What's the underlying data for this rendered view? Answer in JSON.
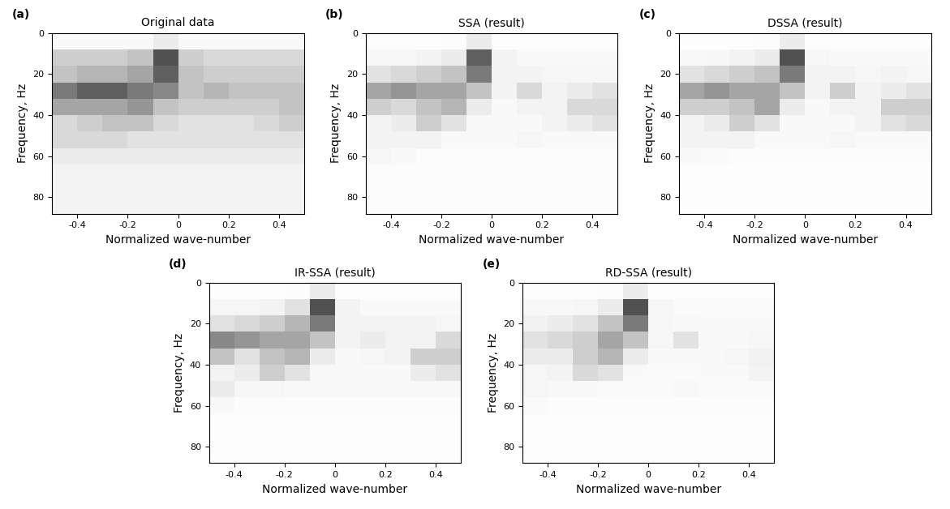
{
  "chart_data": [
    {
      "type": "heatmap",
      "panel": "(a)",
      "title": "Original data",
      "xlabel": "Normalized wave-number",
      "ylabel": "Frequency, Hz",
      "xlim": [
        -0.5,
        0.5
      ],
      "ylim": [
        88,
        0
      ],
      "xticks": [
        -0.4,
        -0.2,
        0,
        0.2,
        0.4
      ],
      "yticks": [
        0,
        20,
        40,
        60,
        80
      ],
      "color": "Greys",
      "value_range": [
        0,
        1
      ],
      "x_edges": [
        -0.5,
        -0.4,
        -0.3,
        -0.2,
        -0.1,
        0.0,
        0.1,
        0.2,
        0.3,
        0.4,
        0.5
      ],
      "y_edges": [
        0,
        8,
        16,
        24,
        32,
        40,
        48,
        56,
        64,
        72,
        80,
        88
      ],
      "cells": [
        [
          0.05,
          0.05,
          0.05,
          0.05,
          0.15,
          0.05,
          0.05,
          0.05,
          0.05,
          0.05
        ],
        [
          0.3,
          0.3,
          0.3,
          0.35,
          0.75,
          0.3,
          0.25,
          0.25,
          0.25,
          0.25
        ],
        [
          0.35,
          0.4,
          0.4,
          0.45,
          0.7,
          0.35,
          0.3,
          0.3,
          0.3,
          0.3
        ],
        [
          0.6,
          0.7,
          0.7,
          0.6,
          0.55,
          0.35,
          0.4,
          0.35,
          0.35,
          0.35
        ],
        [
          0.45,
          0.45,
          0.45,
          0.5,
          0.35,
          0.3,
          0.3,
          0.3,
          0.3,
          0.35
        ],
        [
          0.25,
          0.3,
          0.35,
          0.35,
          0.25,
          0.2,
          0.2,
          0.2,
          0.25,
          0.3
        ],
        [
          0.25,
          0.25,
          0.25,
          0.2,
          0.2,
          0.2,
          0.2,
          0.2,
          0.2,
          0.2
        ],
        [
          0.15,
          0.15,
          0.15,
          0.15,
          0.15,
          0.15,
          0.15,
          0.15,
          0.15,
          0.15
        ],
        [
          0.1,
          0.1,
          0.1,
          0.1,
          0.1,
          0.1,
          0.1,
          0.1,
          0.1,
          0.1
        ],
        [
          0.1,
          0.1,
          0.1,
          0.1,
          0.1,
          0.1,
          0.1,
          0.1,
          0.1,
          0.1
        ],
        [
          0.1,
          0.1,
          0.1,
          0.1,
          0.1,
          0.1,
          0.1,
          0.1,
          0.1,
          0.1
        ]
      ]
    },
    {
      "type": "heatmap",
      "panel": "(b)",
      "title": "SSA (result)",
      "xlabel": "Normalized wave-number",
      "ylabel": "Frequency, Hz",
      "xlim": [
        -0.5,
        0.5
      ],
      "ylim": [
        88,
        0
      ],
      "xticks": [
        -0.4,
        -0.2,
        0,
        0.2,
        0.4
      ],
      "yticks": [
        0,
        20,
        40,
        60,
        80
      ],
      "color": "Greys",
      "value_range": [
        0,
        1
      ],
      "x_edges": [
        -0.5,
        -0.4,
        -0.3,
        -0.2,
        -0.1,
        0.0,
        0.1,
        0.2,
        0.3,
        0.4,
        0.5
      ],
      "y_edges": [
        0,
        8,
        16,
        24,
        32,
        40,
        48,
        56,
        64,
        72,
        80,
        88
      ],
      "cells": [
        [
          0.02,
          0.02,
          0.02,
          0.03,
          0.15,
          0.02,
          0.02,
          0.02,
          0.02,
          0.02
        ],
        [
          0.08,
          0.08,
          0.1,
          0.15,
          0.7,
          0.1,
          0.05,
          0.05,
          0.05,
          0.05
        ],
        [
          0.2,
          0.25,
          0.3,
          0.35,
          0.6,
          0.1,
          0.1,
          0.08,
          0.08,
          0.08
        ],
        [
          0.45,
          0.5,
          0.45,
          0.45,
          0.35,
          0.1,
          0.25,
          0.1,
          0.15,
          0.2
        ],
        [
          0.3,
          0.25,
          0.35,
          0.4,
          0.15,
          0.05,
          0.1,
          0.1,
          0.25,
          0.25
        ],
        [
          0.1,
          0.15,
          0.3,
          0.2,
          0.05,
          0.05,
          0.05,
          0.1,
          0.15,
          0.2
        ],
        [
          0.1,
          0.1,
          0.1,
          0.05,
          0.05,
          0.05,
          0.08,
          0.05,
          0.05,
          0.05
        ],
        [
          0.08,
          0.05,
          0.03,
          0.03,
          0.03,
          0.03,
          0.03,
          0.03,
          0.03,
          0.03
        ],
        [
          0.03,
          0.03,
          0.03,
          0.03,
          0.03,
          0.03,
          0.03,
          0.03,
          0.03,
          0.03
        ],
        [
          0.03,
          0.03,
          0.03,
          0.03,
          0.03,
          0.03,
          0.03,
          0.03,
          0.03,
          0.03
        ],
        [
          0.03,
          0.03,
          0.03,
          0.03,
          0.03,
          0.03,
          0.03,
          0.03,
          0.03,
          0.03
        ]
      ]
    },
    {
      "type": "heatmap",
      "panel": "(c)",
      "title": "DSSA (result)",
      "xlabel": "Normalized wave-number",
      "ylabel": "Frequency, Hz",
      "xlim": [
        -0.5,
        0.5
      ],
      "ylim": [
        88,
        0
      ],
      "xticks": [
        -0.4,
        -0.2,
        0,
        0.2,
        0.4
      ],
      "yticks": [
        0,
        20,
        40,
        60,
        80
      ],
      "color": "Greys",
      "value_range": [
        0,
        1
      ],
      "x_edges": [
        -0.5,
        -0.4,
        -0.3,
        -0.2,
        -0.1,
        0.0,
        0.1,
        0.2,
        0.3,
        0.4,
        0.5
      ],
      "y_edges": [
        0,
        8,
        16,
        24,
        32,
        40,
        48,
        56,
        64,
        72,
        80,
        88
      ],
      "cells": [
        [
          0.02,
          0.02,
          0.02,
          0.03,
          0.15,
          0.02,
          0.02,
          0.02,
          0.02,
          0.02
        ],
        [
          0.06,
          0.07,
          0.1,
          0.15,
          0.75,
          0.08,
          0.05,
          0.05,
          0.05,
          0.05
        ],
        [
          0.2,
          0.25,
          0.3,
          0.35,
          0.6,
          0.1,
          0.1,
          0.08,
          0.1,
          0.08
        ],
        [
          0.45,
          0.5,
          0.45,
          0.45,
          0.35,
          0.1,
          0.3,
          0.1,
          0.15,
          0.2
        ],
        [
          0.3,
          0.3,
          0.35,
          0.45,
          0.15,
          0.05,
          0.1,
          0.1,
          0.3,
          0.3
        ],
        [
          0.1,
          0.15,
          0.3,
          0.2,
          0.05,
          0.05,
          0.05,
          0.1,
          0.2,
          0.25
        ],
        [
          0.1,
          0.1,
          0.1,
          0.05,
          0.05,
          0.05,
          0.08,
          0.05,
          0.05,
          0.05
        ],
        [
          0.05,
          0.04,
          0.03,
          0.03,
          0.03,
          0.03,
          0.03,
          0.03,
          0.03,
          0.03
        ],
        [
          0.02,
          0.02,
          0.02,
          0.02,
          0.02,
          0.02,
          0.02,
          0.02,
          0.02,
          0.02
        ],
        [
          0.02,
          0.02,
          0.02,
          0.02,
          0.02,
          0.02,
          0.02,
          0.02,
          0.02,
          0.02
        ],
        [
          0.02,
          0.02,
          0.02,
          0.02,
          0.02,
          0.02,
          0.02,
          0.02,
          0.02,
          0.02
        ]
      ]
    },
    {
      "type": "heatmap",
      "panel": "(d)",
      "title": "IR-SSA (result)",
      "xlabel": "Normalized wave-number",
      "ylabel": "Frequency, Hz",
      "xlim": [
        -0.5,
        0.5
      ],
      "ylim": [
        88,
        0
      ],
      "xticks": [
        -0.4,
        -0.2,
        0,
        0.2,
        0.4
      ],
      "yticks": [
        0,
        20,
        40,
        60,
        80
      ],
      "color": "Greys",
      "value_range": [
        0,
        1
      ],
      "x_edges": [
        -0.5,
        -0.4,
        -0.3,
        -0.2,
        -0.1,
        0.0,
        0.1,
        0.2,
        0.3,
        0.4,
        0.5
      ],
      "y_edges": [
        0,
        8,
        16,
        24,
        32,
        40,
        48,
        56,
        64,
        72,
        80,
        88
      ],
      "cells": [
        [
          0.02,
          0.02,
          0.02,
          0.03,
          0.15,
          0.02,
          0.02,
          0.02,
          0.02,
          0.02
        ],
        [
          0.08,
          0.08,
          0.1,
          0.2,
          0.75,
          0.1,
          0.05,
          0.05,
          0.05,
          0.05
        ],
        [
          0.2,
          0.25,
          0.3,
          0.4,
          0.6,
          0.1,
          0.1,
          0.1,
          0.1,
          0.08
        ],
        [
          0.55,
          0.5,
          0.45,
          0.45,
          0.35,
          0.1,
          0.15,
          0.1,
          0.1,
          0.25
        ],
        [
          0.35,
          0.2,
          0.35,
          0.4,
          0.15,
          0.05,
          0.08,
          0.1,
          0.3,
          0.3
        ],
        [
          0.1,
          0.15,
          0.3,
          0.2,
          0.05,
          0.05,
          0.05,
          0.05,
          0.15,
          0.2
        ],
        [
          0.15,
          0.08,
          0.08,
          0.05,
          0.05,
          0.05,
          0.05,
          0.05,
          0.05,
          0.05
        ],
        [
          0.05,
          0.03,
          0.03,
          0.03,
          0.03,
          0.03,
          0.03,
          0.03,
          0.03,
          0.03
        ],
        [
          0.02,
          0.02,
          0.02,
          0.02,
          0.02,
          0.02,
          0.02,
          0.02,
          0.02,
          0.02
        ],
        [
          0.02,
          0.02,
          0.02,
          0.02,
          0.02,
          0.02,
          0.02,
          0.02,
          0.02,
          0.02
        ],
        [
          0.02,
          0.02,
          0.02,
          0.02,
          0.02,
          0.02,
          0.02,
          0.02,
          0.02,
          0.02
        ]
      ]
    },
    {
      "type": "heatmap",
      "panel": "(e)",
      "title": "RD-SSA (result)",
      "xlabel": "Normalized wave-number",
      "ylabel": "Frequency, Hz",
      "xlim": [
        -0.5,
        0.5
      ],
      "ylim": [
        88,
        0
      ],
      "xticks": [
        -0.4,
        -0.2,
        0,
        0.2,
        0.4
      ],
      "yticks": [
        0,
        20,
        40,
        60,
        80
      ],
      "color": "Greys",
      "value_range": [
        0,
        1
      ],
      "x_edges": [
        -0.5,
        -0.4,
        -0.3,
        -0.2,
        -0.1,
        0.0,
        0.1,
        0.2,
        0.3,
        0.4,
        0.5
      ],
      "y_edges": [
        0,
        8,
        16,
        24,
        32,
        40,
        48,
        56,
        64,
        72,
        80,
        88
      ],
      "cells": [
        [
          0.02,
          0.02,
          0.02,
          0.03,
          0.15,
          0.02,
          0.02,
          0.02,
          0.02,
          0.02
        ],
        [
          0.06,
          0.06,
          0.08,
          0.15,
          0.75,
          0.08,
          0.04,
          0.04,
          0.04,
          0.04
        ],
        [
          0.12,
          0.15,
          0.2,
          0.35,
          0.6,
          0.08,
          0.06,
          0.05,
          0.05,
          0.05
        ],
        [
          0.2,
          0.25,
          0.3,
          0.45,
          0.35,
          0.08,
          0.2,
          0.05,
          0.05,
          0.08
        ],
        [
          0.15,
          0.15,
          0.3,
          0.4,
          0.15,
          0.05,
          0.05,
          0.05,
          0.08,
          0.12
        ],
        [
          0.08,
          0.1,
          0.25,
          0.2,
          0.05,
          0.04,
          0.04,
          0.05,
          0.05,
          0.1
        ],
        [
          0.08,
          0.06,
          0.06,
          0.04,
          0.04,
          0.04,
          0.06,
          0.04,
          0.04,
          0.04
        ],
        [
          0.04,
          0.03,
          0.03,
          0.03,
          0.03,
          0.03,
          0.03,
          0.03,
          0.03,
          0.03
        ],
        [
          0.02,
          0.02,
          0.02,
          0.02,
          0.02,
          0.02,
          0.02,
          0.02,
          0.02,
          0.02
        ],
        [
          0.02,
          0.02,
          0.02,
          0.02,
          0.02,
          0.02,
          0.02,
          0.02,
          0.02,
          0.02
        ],
        [
          0.02,
          0.02,
          0.02,
          0.02,
          0.02,
          0.02,
          0.02,
          0.02,
          0.02,
          0.02
        ]
      ]
    }
  ]
}
